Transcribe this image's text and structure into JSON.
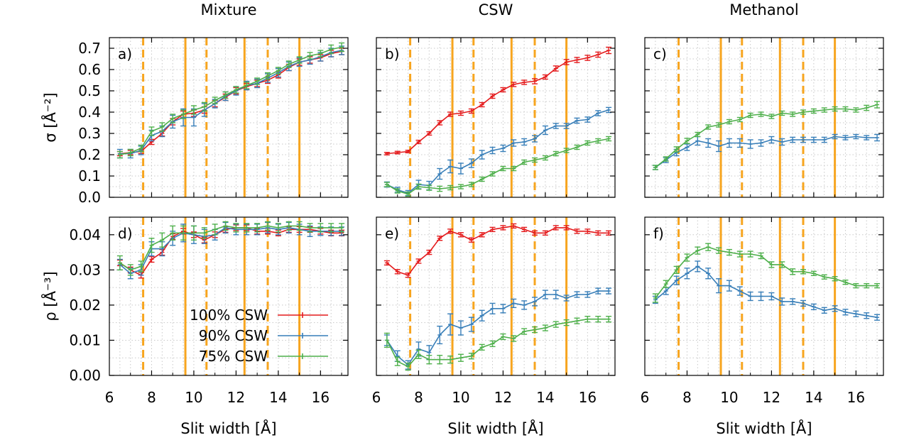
{
  "chart_data": {
    "type": "line",
    "column_titles": [
      "Mixture",
      "CSW",
      "Methanol"
    ],
    "xlabel": "Slit width [Å]",
    "xlim": [
      6,
      17.3
    ],
    "xticks": [
      6,
      8,
      10,
      12,
      14,
      16
    ],
    "xtick_labels": [
      "6",
      "8",
      "10",
      "12",
      "14",
      "16"
    ],
    "rows": [
      {
        "ylabel": "σ [Å⁻²]",
        "ylim": [
          0,
          0.75
        ],
        "yticks": [
          0,
          0.1,
          0.2,
          0.3,
          0.4,
          0.5,
          0.6,
          0.7
        ],
        "ytick_labels": [
          "0.0",
          "0.1",
          "0.2",
          "0.3",
          "0.4",
          "0.5",
          "0.6",
          "0.7"
        ]
      },
      {
        "ylabel": "ρ [Å⁻³]",
        "ylim": [
          0,
          0.045
        ],
        "yticks": [
          0,
          0.01,
          0.02,
          0.03,
          0.04
        ],
        "ytick_labels": [
          "0.00",
          "0.01",
          "0.02",
          "0.03",
          "0.04"
        ]
      }
    ],
    "vlines": [
      {
        "x": 7.6,
        "style": "dashed"
      },
      {
        "x": 9.6,
        "style": "solid"
      },
      {
        "x": 10.6,
        "style": "dashed"
      },
      {
        "x": 12.4,
        "style": "solid"
      },
      {
        "x": 13.5,
        "style": "dashed"
      },
      {
        "x": 15.0,
        "style": "solid"
      }
    ],
    "vline_color": "#f7a51f",
    "legend": {
      "location": "lower-left of panel d",
      "entries": [
        {
          "label": "100% CSW",
          "color": "#e41a1c"
        },
        {
          "label": "90% CSW",
          "color": "#377eb8"
        },
        {
          "label": "75% CSW",
          "color": "#4daf4a"
        }
      ]
    },
    "x": [
      6.5,
      7.0,
      7.5,
      8.0,
      8.5,
      9.0,
      9.5,
      10.0,
      10.5,
      11.0,
      11.5,
      12.0,
      12.5,
      13.0,
      13.5,
      14.0,
      14.5,
      15.0,
      15.5,
      16.0,
      16.5,
      17.0
    ],
    "panels": [
      {
        "label": "a)",
        "row": 0,
        "col": 0,
        "series": [
          {
            "name": "100% CSW",
            "values": [
              0.205,
              0.21,
              0.215,
              0.26,
              0.3,
              0.355,
              0.39,
              0.395,
              0.41,
              0.44,
              0.47,
              0.5,
              0.52,
              0.535,
              0.55,
              0.575,
              0.61,
              0.635,
              0.645,
              0.655,
              0.675,
              0.685
            ],
            "err": [
              0.01,
              0.01,
              0.01,
              0.012,
              0.012,
              0.015,
              0.015,
              0.015,
              0.015,
              0.015,
              0.015,
              0.015,
              0.015,
              0.015,
              0.015,
              0.015,
              0.015,
              0.015,
              0.015,
              0.015,
              0.015,
              0.015
            ]
          },
          {
            "name": "90% CSW",
            "values": [
              0.205,
              0.205,
              0.22,
              0.29,
              0.31,
              0.355,
              0.375,
              0.375,
              0.41,
              0.44,
              0.475,
              0.5,
              0.525,
              0.535,
              0.56,
              0.585,
              0.615,
              0.635,
              0.645,
              0.66,
              0.68,
              0.69
            ],
            "err": [
              0.02,
              0.02,
              0.02,
              0.025,
              0.025,
              0.03,
              0.04,
              0.04,
              0.03,
              0.02,
              0.02,
              0.02,
              0.02,
              0.02,
              0.02,
              0.02,
              0.02,
              0.02,
              0.02,
              0.02,
              0.02,
              0.02
            ]
          },
          {
            "name": "75% CSW",
            "values": [
              0.2,
              0.21,
              0.23,
              0.31,
              0.33,
              0.37,
              0.39,
              0.41,
              0.425,
              0.455,
              0.48,
              0.505,
              0.525,
              0.545,
              0.57,
              0.595,
              0.625,
              0.645,
              0.665,
              0.675,
              0.695,
              0.705
            ],
            "err": [
              0.015,
              0.015,
              0.015,
              0.02,
              0.02,
              0.02,
              0.02,
              0.02,
              0.02,
              0.015,
              0.015,
              0.015,
              0.015,
              0.015,
              0.015,
              0.015,
              0.015,
              0.015,
              0.015,
              0.015,
              0.02,
              0.02
            ]
          }
        ]
      },
      {
        "label": "b)",
        "row": 0,
        "col": 1,
        "series": [
          {
            "name": "100% CSW",
            "values": [
              0.205,
              0.21,
              0.215,
              0.26,
              0.3,
              0.35,
              0.39,
              0.395,
              0.405,
              0.435,
              0.475,
              0.505,
              0.53,
              0.54,
              0.545,
              0.565,
              0.605,
              0.635,
              0.645,
              0.655,
              0.67,
              0.69
            ],
            "err": [
              0.006,
              0.006,
              0.006,
              0.008,
              0.008,
              0.01,
              0.01,
              0.01,
              0.01,
              0.01,
              0.01,
              0.01,
              0.01,
              0.01,
              0.012,
              0.01,
              0.012,
              0.012,
              0.012,
              0.012,
              0.012,
              0.015
            ]
          },
          {
            "name": "90% CSW",
            "values": [
              0.06,
              0.035,
              0.02,
              0.06,
              0.055,
              0.11,
              0.145,
              0.135,
              0.16,
              0.2,
              0.22,
              0.23,
              0.255,
              0.26,
              0.275,
              0.315,
              0.335,
              0.335,
              0.36,
              0.365,
              0.395,
              0.41
            ],
            "err": [
              0.012,
              0.012,
              0.012,
              0.02,
              0.02,
              0.025,
              0.03,
              0.025,
              0.02,
              0.02,
              0.015,
              0.015,
              0.015,
              0.015,
              0.015,
              0.02,
              0.012,
              0.012,
              0.012,
              0.012,
              0.012,
              0.012
            ]
          },
          {
            "name": "75% CSW",
            "values": [
              0.06,
              0.03,
              0.015,
              0.05,
              0.045,
              0.04,
              0.045,
              0.05,
              0.06,
              0.085,
              0.11,
              0.135,
              0.135,
              0.165,
              0.175,
              0.185,
              0.205,
              0.22,
              0.235,
              0.255,
              0.265,
              0.275
            ],
            "err": [
              0.01,
              0.01,
              0.01,
              0.012,
              0.012,
              0.012,
              0.01,
              0.01,
              0.01,
              0.01,
              0.01,
              0.01,
              0.01,
              0.01,
              0.01,
              0.01,
              0.01,
              0.01,
              0.01,
              0.01,
              0.01,
              0.01
            ]
          }
        ]
      },
      {
        "label": "c)",
        "row": 0,
        "col": 2,
        "series": [
          {
            "name": "90% CSW",
            "values": [
              0.14,
              0.175,
              0.21,
              0.235,
              0.265,
              0.255,
              0.24,
              0.255,
              0.255,
              0.25,
              0.255,
              0.27,
              0.26,
              0.27,
              0.27,
              0.27,
              0.27,
              0.285,
              0.28,
              0.285,
              0.28,
              0.28
            ],
            "err": [
              0.01,
              0.012,
              0.015,
              0.015,
              0.02,
              0.02,
              0.025,
              0.02,
              0.02,
              0.02,
              0.015,
              0.015,
              0.015,
              0.012,
              0.012,
              0.012,
              0.012,
              0.01,
              0.01,
              0.01,
              0.01,
              0.015
            ]
          },
          {
            "name": "75% CSW",
            "values": [
              0.14,
              0.18,
              0.225,
              0.265,
              0.295,
              0.33,
              0.34,
              0.355,
              0.365,
              0.385,
              0.39,
              0.38,
              0.395,
              0.39,
              0.4,
              0.405,
              0.41,
              0.415,
              0.415,
              0.41,
              0.42,
              0.435
            ],
            "err": [
              0.01,
              0.01,
              0.012,
              0.012,
              0.01,
              0.01,
              0.01,
              0.01,
              0.01,
              0.01,
              0.01,
              0.01,
              0.01,
              0.01,
              0.01,
              0.01,
              0.01,
              0.01,
              0.01,
              0.01,
              0.012,
              0.015
            ]
          }
        ]
      },
      {
        "label": "d)",
        "row": 1,
        "col": 0,
        "series": [
          {
            "name": "100% CSW",
            "values": [
              0.032,
              0.03,
              0.0285,
              0.033,
              0.035,
              0.0395,
              0.041,
              0.04,
              0.0385,
              0.04,
              0.0415,
              0.042,
              0.042,
              0.041,
              0.041,
              0.0405,
              0.0415,
              0.0415,
              0.0415,
              0.041,
              0.0405,
              0.0405
            ],
            "err": [
              0.0008,
              0.0008,
              0.0008,
              0.0008,
              0.0008,
              0.0008,
              0.0008,
              0.0008,
              0.0008,
              0.0008,
              0.0008,
              0.0008,
              0.0008,
              0.0008,
              0.0008,
              0.0008,
              0.0008,
              0.0008,
              0.0008,
              0.0008,
              0.0008,
              0.0008
            ]
          },
          {
            "name": "90% CSW",
            "values": [
              0.0315,
              0.029,
              0.03,
              0.036,
              0.036,
              0.039,
              0.0405,
              0.04,
              0.0395,
              0.04,
              0.042,
              0.0415,
              0.0415,
              0.0415,
              0.042,
              0.0415,
              0.042,
              0.0415,
              0.041,
              0.041,
              0.041,
              0.041
            ],
            "err": [
              0.0015,
              0.0015,
              0.0015,
              0.002,
              0.002,
              0.002,
              0.0025,
              0.0025,
              0.002,
              0.0015,
              0.0015,
              0.0015,
              0.0015,
              0.0015,
              0.0015,
              0.0015,
              0.0015,
              0.0015,
              0.0015,
              0.0012,
              0.0012,
              0.0012
            ]
          },
          {
            "name": "75% CSW",
            "values": [
              0.032,
              0.03,
              0.031,
              0.037,
              0.0385,
              0.0405,
              0.0405,
              0.0405,
              0.0405,
              0.0415,
              0.0425,
              0.042,
              0.042,
              0.042,
              0.0425,
              0.042,
              0.0425,
              0.0425,
              0.042,
              0.042,
              0.042,
              0.042
            ],
            "err": [
              0.002,
              0.0015,
              0.0015,
              0.002,
              0.002,
              0.002,
              0.002,
              0.002,
              0.0015,
              0.0015,
              0.0012,
              0.0012,
              0.0012,
              0.0012,
              0.0012,
              0.0012,
              0.0012,
              0.0012,
              0.0012,
              0.0012,
              0.0012,
              0.0012
            ]
          }
        ]
      },
      {
        "label": "e)",
        "row": 1,
        "col": 1,
        "series": [
          {
            "name": "100% CSW",
            "values": [
              0.032,
              0.0295,
              0.0285,
              0.0325,
              0.035,
              0.039,
              0.041,
              0.04,
              0.0385,
              0.04,
              0.0415,
              0.042,
              0.0425,
              0.0415,
              0.0405,
              0.0405,
              0.042,
              0.042,
              0.041,
              0.041,
              0.0405,
              0.0405
            ],
            "err": [
              0.0006,
              0.0006,
              0.0006,
              0.0006,
              0.0006,
              0.0006,
              0.0006,
              0.0006,
              0.0006,
              0.0006,
              0.0006,
              0.0006,
              0.0006,
              0.0006,
              0.0006,
              0.0006,
              0.0006,
              0.0006,
              0.0006,
              0.0006,
              0.0006,
              0.0006
            ]
          },
          {
            "name": "90% CSW",
            "values": [
              0.01,
              0.0055,
              0.003,
              0.0075,
              0.0065,
              0.0115,
              0.0145,
              0.0135,
              0.0145,
              0.017,
              0.019,
              0.019,
              0.0205,
              0.02,
              0.021,
              0.023,
              0.023,
              0.022,
              0.023,
              0.023,
              0.024,
              0.024
            ],
            "err": [
              0.0015,
              0.0015,
              0.0012,
              0.002,
              0.002,
              0.0025,
              0.003,
              0.002,
              0.002,
              0.0015,
              0.0015,
              0.0012,
              0.0012,
              0.0012,
              0.0012,
              0.0012,
              0.0012,
              0.0008,
              0.0008,
              0.0008,
              0.0008,
              0.0008
            ]
          },
          {
            "name": "75% CSW",
            "values": [
              0.01,
              0.004,
              0.0025,
              0.006,
              0.0045,
              0.0045,
              0.0045,
              0.005,
              0.0055,
              0.008,
              0.009,
              0.011,
              0.0105,
              0.0125,
              0.013,
              0.0135,
              0.0145,
              0.015,
              0.0155,
              0.016,
              0.016,
              0.016
            ],
            "err": [
              0.002,
              0.0012,
              0.001,
              0.0012,
              0.0012,
              0.0012,
              0.001,
              0.001,
              0.0008,
              0.0008,
              0.0008,
              0.0008,
              0.0008,
              0.0008,
              0.0008,
              0.0008,
              0.0008,
              0.0008,
              0.0008,
              0.0008,
              0.0008,
              0.0008
            ]
          }
        ]
      },
      {
        "label": "f)",
        "row": 1,
        "col": 2,
        "series": [
          {
            "name": "90% CSW",
            "values": [
              0.0215,
              0.024,
              0.027,
              0.029,
              0.031,
              0.029,
              0.0255,
              0.0255,
              0.024,
              0.0225,
              0.0225,
              0.0225,
              0.021,
              0.021,
              0.0205,
              0.0195,
              0.0185,
              0.019,
              0.018,
              0.0175,
              0.017,
              0.0165
            ],
            "err": [
              0.001,
              0.001,
              0.0012,
              0.0015,
              0.0015,
              0.0015,
              0.002,
              0.0015,
              0.0012,
              0.0012,
              0.0012,
              0.001,
              0.001,
              0.0008,
              0.0008,
              0.0008,
              0.0008,
              0.0008,
              0.0008,
              0.0008,
              0.0008,
              0.0008
            ]
          },
          {
            "name": "75% CSW",
            "values": [
              0.022,
              0.026,
              0.03,
              0.0335,
              0.0355,
              0.0365,
              0.0355,
              0.035,
              0.0345,
              0.0345,
              0.034,
              0.0315,
              0.0315,
              0.0295,
              0.0295,
              0.029,
              0.028,
              0.0275,
              0.0265,
              0.0255,
              0.0255,
              0.0255
            ],
            "err": [
              0.0012,
              0.001,
              0.001,
              0.001,
              0.001,
              0.001,
              0.0008,
              0.0008,
              0.0008,
              0.0008,
              0.0008,
              0.0008,
              0.0008,
              0.0008,
              0.0006,
              0.0006,
              0.0006,
              0.0006,
              0.0006,
              0.0006,
              0.0006,
              0.0006
            ]
          }
        ]
      }
    ]
  }
}
